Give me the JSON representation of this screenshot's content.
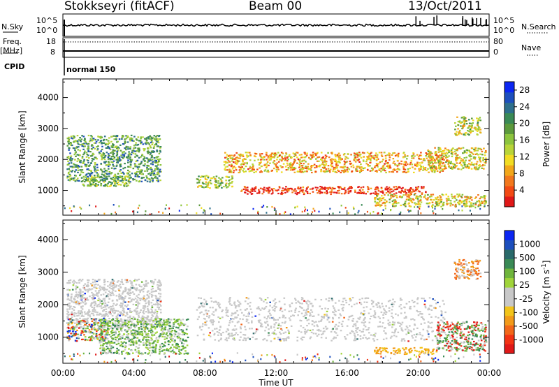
{
  "header": {
    "radar": "Stokkseyri (fitACF)",
    "beam": "Beam 00",
    "date": "13/Oct/2011"
  },
  "labels": {
    "nsky": "N.Sky",
    "freq": "Freq.",
    "mhz": "[MHz]",
    "cpid": "CPID",
    "nsearch": "N.Search",
    "nave": "Nave",
    "program": "normal 150",
    "sky_max": "10^5",
    "sky_min": "10^0",
    "search_max": "10^5",
    "search_min": "10^0",
    "freq_hi": "18",
    "freq_lo": "8",
    "nave_hi": "80",
    "nave_lo": "0"
  },
  "colors": {
    "power": [
      "#0b26f2",
      "#1d4fbd",
      "#2e6f8c",
      "#3a8a56",
      "#5c9a3c",
      "#8cc43e",
      "#b8d439",
      "#f1dc23",
      "#f2a71a",
      "#f2781d",
      "#f24a14",
      "#e01818"
    ],
    "velocity": [
      "#0b26f2",
      "#1d4fbd",
      "#2a6a6a",
      "#3a8a56",
      "#6fb53c",
      "#a0d43a",
      "#c8c8c8",
      "#c8c8c8",
      "#f2c41a",
      "#f29a1a",
      "#f2671a",
      "#f23314",
      "#e01818"
    ]
  },
  "chart_data": [
    {
      "type": "heatmap",
      "title": "",
      "ylabel": "Slant Range [km]",
      "xlabel": "",
      "x_ticks": [
        "00:00",
        "04:00",
        "08:00",
        "12:00",
        "16:00",
        "20:00",
        "00:00"
      ],
      "y_ticks": [
        1000,
        2000,
        3000,
        4000
      ],
      "ylim": [
        200,
        4600
      ],
      "xlim": [
        0,
        24
      ],
      "colorbar": {
        "label": "Power [dB]",
        "ticks": [
          4,
          8,
          12,
          16,
          20,
          24,
          28
        ],
        "range": [
          0,
          30
        ]
      },
      "scatter_regions": [
        {
          "t": [
            0.2,
            5.5
          ],
          "r": [
            1300,
            2800
          ],
          "level": 0.35
        },
        {
          "t": [
            1.0,
            3.8
          ],
          "r": [
            1150,
            1500
          ],
          "level": 0.45
        },
        {
          "t": [
            7.5,
            9.5
          ],
          "r": [
            1100,
            1500
          ],
          "level": 0.5
        },
        {
          "t": [
            9.0,
            21.5
          ],
          "r": [
            1600,
            2250
          ],
          "level": 0.7
        },
        {
          "t": [
            10.0,
            20.5
          ],
          "r": [
            900,
            1150
          ],
          "level": 0.95
        },
        {
          "t": [
            17.5,
            23.8
          ],
          "r": [
            500,
            900
          ],
          "level": 0.6
        },
        {
          "t": [
            20.5,
            23.8
          ],
          "r": [
            1700,
            2400
          ],
          "level": 0.6
        },
        {
          "t": [
            22.0,
            23.5
          ],
          "r": [
            2800,
            3400
          ],
          "level": 0.55
        }
      ]
    },
    {
      "type": "heatmap",
      "title": "",
      "ylabel": "Slant Range [km]",
      "xlabel": "Time UT",
      "x_ticks": [
        "00:00",
        "04:00",
        "08:00",
        "12:00",
        "16:00",
        "20:00",
        "00:00"
      ],
      "y_ticks": [
        1000,
        2000,
        3000,
        4000
      ],
      "ylim": [
        200,
        4600
      ],
      "xlim": [
        0,
        24
      ],
      "colorbar": {
        "label": "Velocity [m s^-1]",
        "ticks": [
          1000,
          500,
          100,
          25,
          -25,
          -100,
          -500,
          -1000
        ]
      },
      "scatter_regions": [
        {
          "t": [
            0.2,
            5.5
          ],
          "r": [
            1300,
            2800
          ],
          "level": "ground"
        },
        {
          "t": [
            0.2,
            2.5
          ],
          "r": [
            900,
            1600
          ],
          "level": "mixed"
        },
        {
          "t": [
            2.0,
            7.0
          ],
          "r": [
            500,
            1600
          ],
          "level": "green"
        },
        {
          "t": [
            7.5,
            21.5
          ],
          "r": [
            900,
            2250
          ],
          "level": "ground"
        },
        {
          "t": [
            17.5,
            21.0
          ],
          "r": [
            500,
            700
          ],
          "level": "yellow"
        },
        {
          "t": [
            21.0,
            23.8
          ],
          "r": [
            600,
            1500
          ],
          "level": "green-red"
        },
        {
          "t": [
            22.0,
            23.5
          ],
          "r": [
            2800,
            3400
          ],
          "level": "orange"
        }
      ]
    }
  ]
}
